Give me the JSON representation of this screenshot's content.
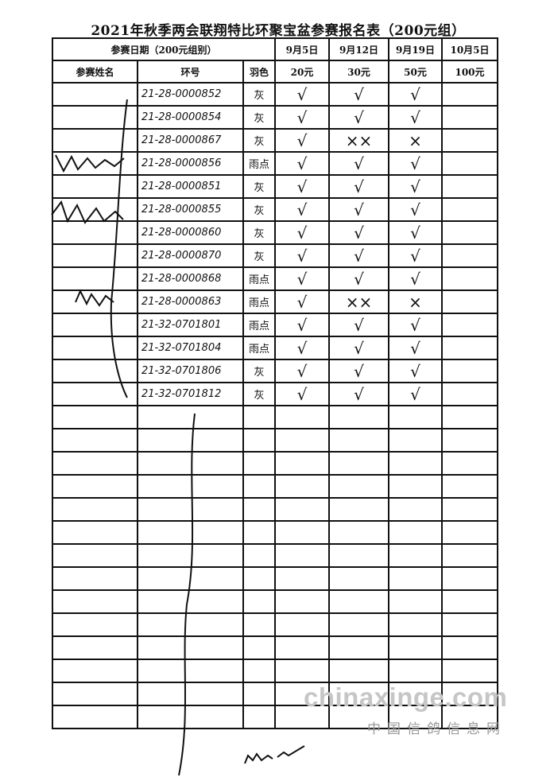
{
  "title": "2021年秋季两会联翔特比环聚宝盆参赛报名表（200元组）",
  "header": {
    "date_label": "参赛日期（200元组别）",
    "dates": [
      "9月5日",
      "9月12日",
      "9月19日",
      "10月5日"
    ],
    "name_label": "参赛姓名",
    "ring_label": "环号",
    "color_label": "羽色",
    "fees": [
      "20元",
      "30元",
      "50元",
      "100元"
    ]
  },
  "rows": [
    {
      "ring": "21-28-0000852",
      "color": "灰",
      "marks": [
        "√",
        "√",
        "√",
        ""
      ]
    },
    {
      "ring": "21-28-0000854",
      "color": "灰",
      "marks": [
        "√",
        "√",
        "√",
        ""
      ]
    },
    {
      "ring": "21-28-0000867",
      "color": "灰",
      "marks": [
        "√",
        "××",
        "×",
        ""
      ]
    },
    {
      "ring": "21-28-0000856",
      "color": "雨点",
      "marks": [
        "√",
        "√",
        "√",
        ""
      ]
    },
    {
      "ring": "21-28-0000851",
      "color": "灰",
      "marks": [
        "√",
        "√",
        "√",
        ""
      ]
    },
    {
      "ring": "21-28-0000855",
      "color": "灰",
      "marks": [
        "√",
        "√",
        "√",
        ""
      ]
    },
    {
      "ring": "21-28-0000860",
      "color": "灰",
      "marks": [
        "√",
        "√",
        "√",
        ""
      ]
    },
    {
      "ring": "21-28-0000870",
      "color": "灰",
      "marks": [
        "√",
        "√",
        "√",
        ""
      ]
    },
    {
      "ring": "21-28-0000868",
      "color": "雨点",
      "marks": [
        "√",
        "√",
        "√",
        ""
      ]
    },
    {
      "ring": "21-28-0000863",
      "color": "雨点",
      "marks": [
        "√",
        "××",
        "×",
        ""
      ]
    },
    {
      "ring": "21-32-0701801",
      "color": "雨点",
      "marks": [
        "√",
        "√",
        "√",
        ""
      ]
    },
    {
      "ring": "21-32-0701804",
      "color": "雨点",
      "marks": [
        "√",
        "√",
        "√",
        ""
      ]
    },
    {
      "ring": "21-32-0701806",
      "color": "灰",
      "marks": [
        "√",
        "√",
        "√",
        ""
      ]
    },
    {
      "ring": "21-32-0701812",
      "color": "灰",
      "marks": [
        "√",
        "√",
        "√",
        ""
      ]
    }
  ],
  "blank_rows": 14,
  "watermark": {
    "site": "chinaxinge.com",
    "name": "中国信鸽信息网"
  }
}
